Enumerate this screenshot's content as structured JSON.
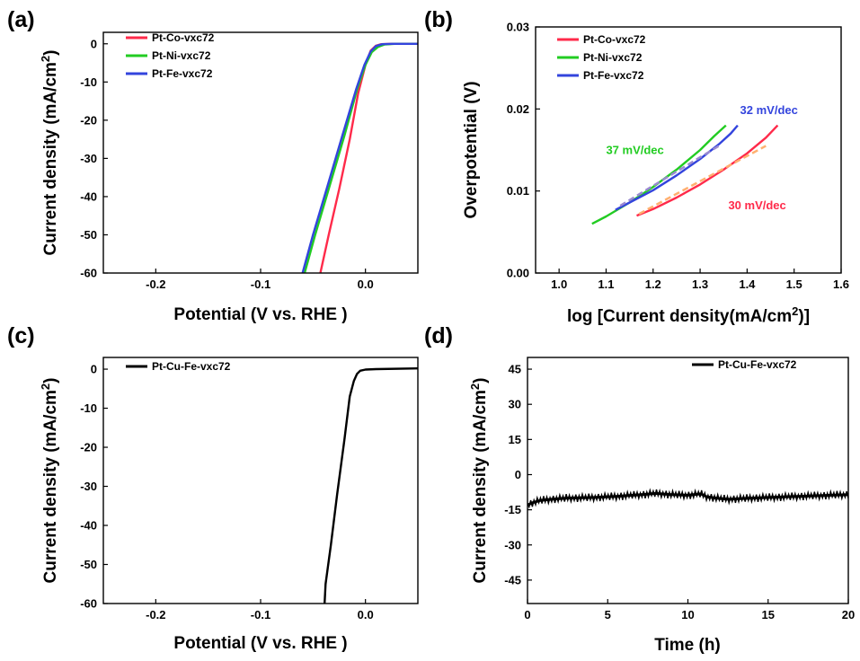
{
  "chart_data": [
    {
      "id": "a",
      "panel_label": "(a)",
      "type": "line",
      "title": "",
      "xlabel": "Potential (V vs. RHE )",
      "ylabel": "Current density (mA/cm²)",
      "xlim": [
        -0.25,
        0.05
      ],
      "ylim": [
        -60,
        3
      ],
      "xticks": [
        -0.2,
        -0.1,
        0.0
      ],
      "xtick_labels": [
        "-0.2",
        "-0.1",
        "0.0"
      ],
      "yticks": [
        0,
        -10,
        -20,
        -30,
        -40,
        -50,
        -60
      ],
      "ytick_labels": [
        "0",
        "-10",
        "-20",
        "-30",
        "-40",
        "-50",
        "-60"
      ],
      "legend_position": "top-left",
      "series": [
        {
          "name": "Pt-Co-vxc72",
          "color": "#ff2a4a",
          "x": [
            -0.043,
            -0.035,
            -0.025,
            -0.015,
            -0.007,
            0.0,
            0.005,
            0.01,
            0.015,
            0.025,
            0.05
          ],
          "y": [
            -60,
            -50,
            -38,
            -25,
            -13,
            -5.5,
            -1.8,
            -0.5,
            -0.1,
            0,
            0
          ]
        },
        {
          "name": "Pt-Ni-vxc72",
          "color": "#22cc22",
          "x": [
            -0.058,
            -0.048,
            -0.035,
            -0.02,
            -0.008,
            0.0,
            0.006,
            0.012,
            0.018,
            0.028,
            0.05
          ],
          "y": [
            -60,
            -50,
            -38,
            -24,
            -12,
            -5.5,
            -2.2,
            -0.8,
            -0.2,
            0,
            0
          ]
        },
        {
          "name": "Pt-Fe-vxc72",
          "color": "#3344dd",
          "x": [
            -0.06,
            -0.05,
            -0.037,
            -0.022,
            -0.009,
            -0.001,
            0.005,
            0.01,
            0.016,
            0.025,
            0.05
          ],
          "y": [
            -60,
            -50,
            -38,
            -24,
            -12,
            -5.5,
            -2.0,
            -0.6,
            -0.1,
            0,
            0
          ]
        }
      ]
    },
    {
      "id": "b",
      "panel_label": "(b)",
      "type": "line",
      "title": "",
      "xlabel": "log [Current density(mA/cm²)]",
      "ylabel": "Overpotential (V)",
      "xlim": [
        0.95,
        1.6
      ],
      "ylim": [
        0.0,
        0.03
      ],
      "xticks": [
        1.0,
        1.1,
        1.2,
        1.3,
        1.4,
        1.5,
        1.6
      ],
      "xtick_labels": [
        "1.0",
        "1.1",
        "1.2",
        "1.3",
        "1.4",
        "1.5",
        "1.6"
      ],
      "yticks": [
        0.0,
        0.01,
        0.02,
        0.03
      ],
      "ytick_labels": [
        "0.00",
        "0.01",
        "0.02",
        "0.03"
      ],
      "legend_position": "top-left",
      "series": [
        {
          "name": "Pt-Co-vxc72",
          "color": "#ff2a4a",
          "x": [
            1.165,
            1.2,
            1.25,
            1.3,
            1.35,
            1.4,
            1.44,
            1.465
          ],
          "y": [
            0.007,
            0.0078,
            0.0092,
            0.0108,
            0.0126,
            0.0146,
            0.0165,
            0.018
          ]
        },
        {
          "name": "Pt-Ni-vxc72",
          "color": "#22cc22",
          "x": [
            1.07,
            1.1,
            1.15,
            1.2,
            1.25,
            1.3,
            1.33,
            1.355
          ],
          "y": [
            0.006,
            0.0069,
            0.0086,
            0.0105,
            0.0126,
            0.015,
            0.0167,
            0.018
          ]
        },
        {
          "name": "Pt-Fe-vxc72",
          "color": "#3344dd",
          "x": [
            1.12,
            1.15,
            1.2,
            1.25,
            1.3,
            1.34,
            1.365,
            1.38
          ],
          "y": [
            0.0077,
            0.0086,
            0.0101,
            0.0119,
            0.0139,
            0.0157,
            0.017,
            0.018
          ]
        }
      ],
      "fits": [
        {
          "color": "#ffb070",
          "x": [
            1.17,
            1.44
          ],
          "y": [
            0.0072,
            0.0155
          ]
        },
        {
          "color": "#9a8ad0",
          "x": [
            1.13,
            1.34
          ],
          "y": [
            0.0082,
            0.0155
          ]
        }
      ],
      "annotations": [
        {
          "text": "37 mV/dec",
          "color": "#22cc22",
          "x": 1.1,
          "y": 0.0145
        },
        {
          "text": "32 mV/dec",
          "color": "#3344dd",
          "x": 1.385,
          "y": 0.0194
        },
        {
          "text": "30 mV/dec",
          "color": "#ff2a4a",
          "x": 1.36,
          "y": 0.0078
        }
      ]
    },
    {
      "id": "c",
      "panel_label": "(c)",
      "type": "line",
      "title": "",
      "xlabel": "Potential (V vs. RHE )",
      "ylabel": "Current density (mA/cm²)",
      "xlim": [
        -0.25,
        0.05
      ],
      "ylim": [
        -60,
        3
      ],
      "xticks": [
        -0.2,
        -0.1,
        0.0
      ],
      "xtick_labels": [
        "-0.2",
        "-0.1",
        "0.0"
      ],
      "yticks": [
        0,
        -10,
        -20,
        -30,
        -40,
        -50,
        -60
      ],
      "ytick_labels": [
        "0",
        "-10",
        "-20",
        "-30",
        "-40",
        "-50",
        "-60"
      ],
      "legend_position": "top-left",
      "series": [
        {
          "name": "Pt-Cu-Fe-vxc72",
          "color": "#000000",
          "x": [
            -0.039,
            -0.038,
            -0.033,
            -0.027,
            -0.02,
            -0.015,
            -0.011,
            -0.008,
            -0.005,
            0.0,
            0.01,
            0.05
          ],
          "y": [
            -60,
            -55,
            -45,
            -32,
            -18,
            -7,
            -3,
            -1.2,
            -0.4,
            -0.1,
            0,
            0.2
          ]
        }
      ]
    },
    {
      "id": "d",
      "panel_label": "(d)",
      "type": "line",
      "title": "",
      "xlabel": "Time (h)",
      "ylabel": "Current density (mA/cm²)",
      "xlim": [
        0,
        20
      ],
      "ylim": [
        -55,
        50
      ],
      "xticks": [
        0,
        5,
        10,
        15,
        20
      ],
      "xtick_labels": [
        "0",
        "5",
        "10",
        "15",
        "20"
      ],
      "yticks": [
        45,
        30,
        15,
        0,
        -15,
        -30,
        -45
      ],
      "ytick_labels": [
        "45",
        "30",
        "15",
        "0",
        "-15",
        "-30",
        "-45"
      ],
      "legend_position": "top-right",
      "series": [
        {
          "name": "Pt-Cu-Fe-vxc72",
          "color": "#000000",
          "x": [
            0,
            0.3,
            0.8,
            1.5,
            2.5,
            4,
            5.5,
            7,
            8,
            9,
            10,
            10.8,
            11.2,
            12,
            12.5,
            14,
            16,
            18,
            20
          ],
          "y": [
            -13,
            -12,
            -11,
            -10.5,
            -10,
            -9.8,
            -9.3,
            -8.6,
            -8,
            -8.5,
            -8.8,
            -8.2,
            -9.5,
            -10.2,
            -10.5,
            -10,
            -9.5,
            -9,
            -8.5
          ]
        }
      ]
    }
  ]
}
